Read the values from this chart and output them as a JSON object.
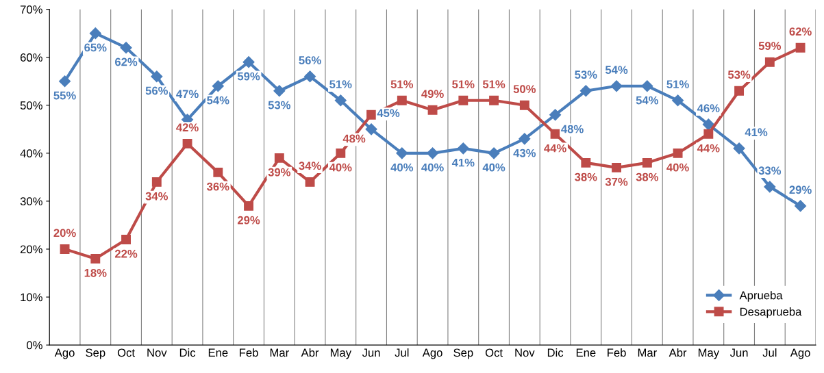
{
  "chart_data": {
    "type": "line",
    "categories": [
      "Ago",
      "Sep",
      "Oct",
      "Nov",
      "Dic",
      "Ene",
      "Feb",
      "Mar",
      "Abr",
      "May",
      "Jun",
      "Jul",
      "Ago",
      "Sep",
      "Oct",
      "Nov",
      "Dic",
      "Ene",
      "Feb",
      "Mar",
      "Abr",
      "May",
      "Jun",
      "Jul",
      "Ago"
    ],
    "series": [
      {
        "name": "Aprueba",
        "color": "#4a7ebb",
        "marker": "diamond",
        "values": [
          55,
          65,
          62,
          56,
          47,
          54,
          59,
          53,
          56,
          51,
          45,
          40,
          40,
          41,
          40,
          43,
          48,
          53,
          54,
          54,
          51,
          46,
          41,
          33,
          29
        ],
        "value_labels": [
          "55%",
          "65%",
          "62%",
          "56%",
          "47%",
          "54%",
          "59%",
          "53%",
          "56%",
          "51%",
          "45%",
          "40%",
          "40%",
          "41%",
          "40%",
          "43%",
          "48%",
          "53%",
          "54%",
          "54%",
          "51%",
          "46%",
          "41%",
          "33%",
          "29%"
        ]
      },
      {
        "name": "Desaprueba",
        "color": "#be4b48",
        "marker": "square",
        "values": [
          20,
          18,
          22,
          34,
          42,
          36,
          29,
          39,
          34,
          40,
          48,
          51,
          49,
          51,
          51,
          50,
          44,
          38,
          37,
          38,
          40,
          44,
          53,
          59,
          62
        ],
        "value_labels": [
          "20%",
          "18%",
          "22%",
          "34%",
          "42%",
          "36%",
          "29%",
          "39%",
          "34%",
          "40%",
          "48%",
          "51%",
          "49%",
          "51%",
          "51%",
          "50%",
          "44%",
          "38%",
          "37%",
          "38%",
          "40%",
          "44%",
          "53%",
          "59%",
          "62%"
        ]
      }
    ],
    "ylim": [
      0,
      70
    ],
    "yticks": [
      {
        "value": 0,
        "label": "0%"
      },
      {
        "value": 10,
        "label": "10%"
      },
      {
        "value": 20,
        "label": "20%"
      },
      {
        "value": 30,
        "label": "30%"
      },
      {
        "value": 40,
        "label": "40%"
      },
      {
        "value": 50,
        "label": "50%"
      },
      {
        "value": 60,
        "label": "60%"
      },
      {
        "value": 70,
        "label": "70%"
      }
    ],
    "grid": "x",
    "legend": "bottom right",
    "line_style": "solid"
  }
}
